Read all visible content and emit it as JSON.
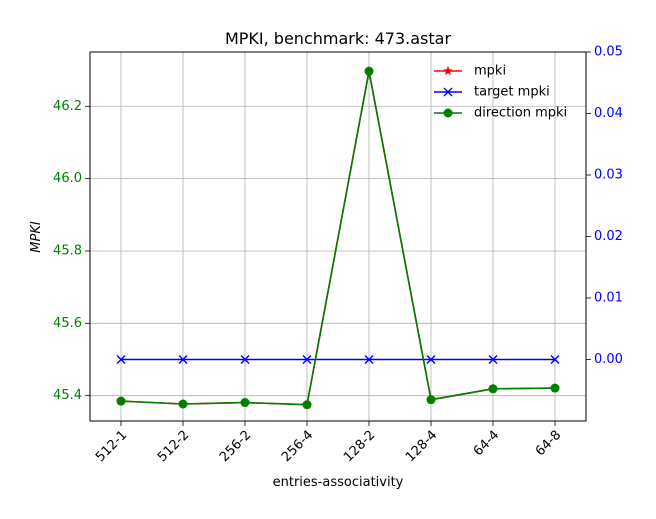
{
  "chart_data": {
    "type": "line",
    "title": "MPKI, benchmark: 473.astar",
    "xlabel": "entries-associativity",
    "ylabel_left": "MPKI",
    "ylabel_right": "",
    "categories": [
      "512-1",
      "512-2",
      "256-2",
      "256-4",
      "128-2",
      "128-4",
      "64-4",
      "64-8"
    ],
    "ylim_left": [
      45.33,
      46.35
    ],
    "ylim_right": [
      -0.01,
      0.05
    ],
    "yticks_left": [
      "45.4",
      "45.6",
      "45.8",
      "46.0",
      "46.2"
    ],
    "yticks_right": [
      "0.00",
      "0.01",
      "0.02",
      "0.03",
      "0.04",
      "0.05"
    ],
    "grid": true,
    "legend_position": "top-right",
    "series": [
      {
        "name": "mpki",
        "axis": "left",
        "color": "#ff0000",
        "marker": "star",
        "values": [
          45.385,
          45.377,
          45.381,
          45.375,
          46.297,
          45.389,
          45.419,
          45.421
        ]
      },
      {
        "name": "target mpki",
        "axis": "right",
        "color": "#0000ff",
        "marker": "x",
        "values": [
          0,
          0,
          0,
          0,
          0,
          0,
          0,
          0
        ]
      },
      {
        "name": "direction mpki",
        "axis": "left",
        "color": "#008000",
        "marker": "circle",
        "values": [
          45.385,
          45.377,
          45.381,
          45.375,
          46.297,
          45.389,
          45.419,
          45.421
        ]
      }
    ],
    "left_axis_color": "#008000",
    "right_axis_color": "#0000ff"
  }
}
